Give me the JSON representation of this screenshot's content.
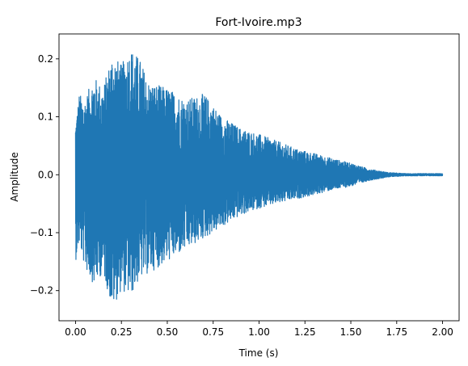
{
  "chart_data": {
    "type": "line",
    "title": "Fort-Ivoire.mp3",
    "xlabel": "Time (s)",
    "ylabel": "Amplitude",
    "xlim": [
      -0.09,
      2.09
    ],
    "ylim": [
      -0.252,
      0.243
    ],
    "x_ticks": [
      0.0,
      0.25,
      0.5,
      0.75,
      1.0,
      1.25,
      1.5,
      1.75,
      2.0
    ],
    "x_tick_labels": [
      "0.00",
      "0.25",
      "0.50",
      "0.75",
      "1.00",
      "1.25",
      "1.50",
      "1.75",
      "2.00"
    ],
    "y_ticks": [
      -0.2,
      -0.1,
      0.0,
      0.1,
      0.2
    ],
    "y_tick_labels": [
      "−0.2",
      "−0.1",
      "0.0",
      "0.1",
      "0.2"
    ],
    "grid": false,
    "legend": "none",
    "series": [
      {
        "color": "#1f77b4",
        "duration": 2.0,
        "envelope": {
          "x": [
            0.0,
            0.02,
            0.05,
            0.1,
            0.15,
            0.2,
            0.25,
            0.3,
            0.35,
            0.4,
            0.5,
            0.6,
            0.7,
            0.8,
            0.9,
            1.0,
            1.1,
            1.2,
            1.3,
            1.4,
            1.5,
            1.6,
            1.7,
            1.8,
            2.0
          ],
          "upper": [
            0.09,
            0.14,
            0.13,
            0.17,
            0.15,
            0.21,
            0.19,
            0.22,
            0.2,
            0.16,
            0.15,
            0.13,
            0.14,
            0.1,
            0.08,
            0.07,
            0.058,
            0.045,
            0.037,
            0.028,
            0.02,
            0.01,
            0.004,
            0.002,
            0.002
          ],
          "lower": [
            -0.15,
            -0.12,
            -0.16,
            -0.19,
            -0.17,
            -0.23,
            -0.2,
            -0.21,
            -0.18,
            -0.17,
            -0.15,
            -0.13,
            -0.11,
            -0.09,
            -0.07,
            -0.058,
            -0.05,
            -0.042,
            -0.035,
            -0.026,
            -0.02,
            -0.01,
            -0.004,
            -0.002,
            -0.002
          ]
        }
      }
    ]
  }
}
